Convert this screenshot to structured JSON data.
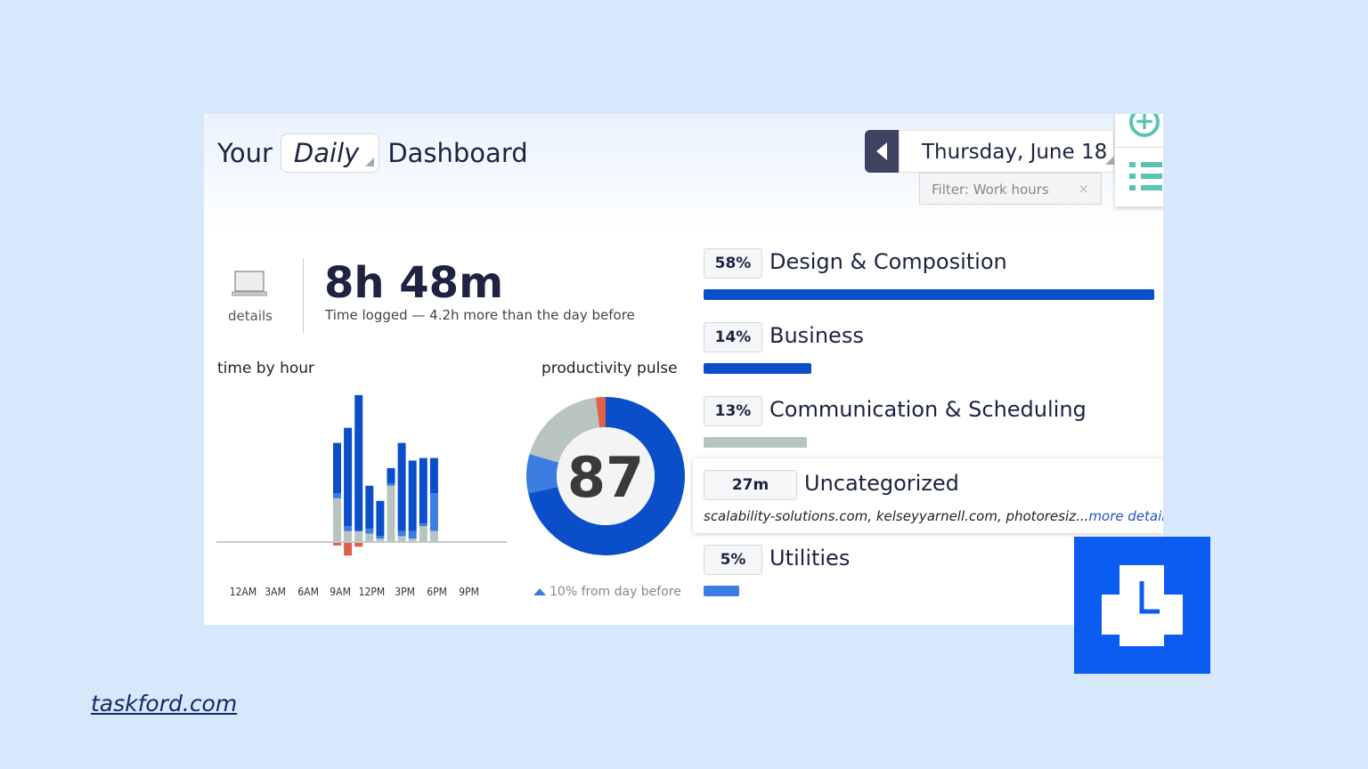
{
  "header": {
    "your": "Your",
    "period": "Daily",
    "dashboard": "Dashboard",
    "date": "Thursday, June 18",
    "filter": "Filter: Work hours",
    "filter_clear": "×"
  },
  "summary": {
    "details": "details",
    "total": "8h 48m",
    "subtitle": "Time logged — 4.2h more than the day before"
  },
  "time_by_hour": {
    "label": "time by hour"
  },
  "pulse": {
    "label": "productivity pulse",
    "score": "87",
    "change": "10% from day before"
  },
  "categories": [
    {
      "badge": "58%",
      "name": "Design & Composition",
      "fraction": 1.0,
      "color": "#0a4fc9"
    },
    {
      "badge": "14%",
      "name": "Business",
      "fraction": 0.24,
      "color": "#0a4fc9"
    },
    {
      "badge": "13%",
      "name": "Communication & Scheduling",
      "fraction": 0.23,
      "color": "#b8c4c2"
    },
    {
      "badge": "27m",
      "name": "Uncategorized",
      "domains": "scalability-solutions.com, kelseyyarnell.com, photoresiz...",
      "more": "more details"
    },
    {
      "badge": "5%",
      "name": "Utilities",
      "fraction": 0.08,
      "color": "#3b7de0"
    }
  ],
  "site": "taskford.com",
  "colors": {
    "dark_blue": "#0a4fc9",
    "light_blue": "#3b7de0",
    "gray": "#b8c4c2",
    "red": "#e0604a",
    "brand": "#0b5cf0"
  },
  "chart_data": [
    {
      "type": "bar",
      "stacked": true,
      "title": "time by hour",
      "x_ticks": [
        "12AM",
        "3AM",
        "6AM",
        "9AM",
        "12PM",
        "3PM",
        "6PM",
        "9PM"
      ],
      "hours": [
        10,
        11,
        12,
        13,
        14,
        15,
        16,
        17,
        18,
        19
      ],
      "series": [
        {
          "color": "#b8c4c2",
          "values": [
            17,
            4,
            4,
            3,
            1,
            22,
            2,
            1,
            6,
            4
          ]
        },
        {
          "color": "#3b7de0",
          "values": [
            2,
            2,
            0,
            2,
            1,
            1,
            2,
            3,
            1,
            15
          ]
        },
        {
          "color": "#0a4fc9",
          "values": [
            20,
            39,
            54,
            17,
            14,
            6,
            35,
            28,
            26,
            14
          ]
        },
        {
          "color": "#e0604a",
          "values": [
            -1,
            -5,
            -1.5,
            0,
            0,
            0,
            0,
            0,
            0,
            0
          ]
        }
      ]
    },
    {
      "type": "pie",
      "donut": true,
      "title": "productivity pulse",
      "center_label": "87",
      "slices": [
        {
          "color": "#0a4fc9",
          "value": 71.5
        },
        {
          "color": "#3b7de0",
          "value": 8
        },
        {
          "color": "#b8c4c2",
          "value": 18.5
        },
        {
          "color": "#e0604a",
          "value": 2
        }
      ]
    }
  ]
}
